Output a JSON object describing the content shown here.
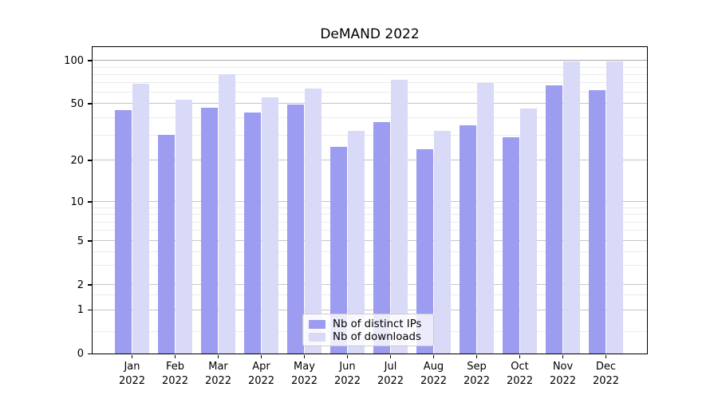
{
  "chart_data": {
    "type": "bar",
    "title": "DeMAND 2022",
    "year_label": "2022",
    "months": [
      "Jan",
      "Feb",
      "Mar",
      "Apr",
      "May",
      "Jun",
      "Jul",
      "Aug",
      "Sep",
      "Oct",
      "Nov",
      "Dec"
    ],
    "series": [
      {
        "name": "Nb of distinct IPs",
        "color": "#9c9cf0",
        "values": [
          45,
          30,
          47,
          43,
          49,
          25,
          37,
          24,
          35,
          29,
          67,
          62
        ]
      },
      {
        "name": "Nb of downloads",
        "color": "#d9d9f8",
        "values": [
          69,
          53,
          80,
          55,
          64,
          32,
          73,
          32,
          70,
          46,
          98,
          98
        ]
      }
    ],
    "yscale": "symlog",
    "ylim": [
      0,
      125
    ],
    "ytick_values": [
      100,
      50,
      20,
      10,
      5,
      2,
      1,
      0
    ],
    "ytick_labels": [
      "100",
      "50",
      "20",
      "10",
      "5",
      "2",
      "1",
      "0"
    ],
    "yminor_values": [
      90,
      80,
      70,
      60,
      40,
      30,
      9,
      8,
      7,
      6,
      4,
      3,
      1.5,
      0.5
    ],
    "grid": "both",
    "legend": {
      "position": "lower center",
      "entries": [
        "Nb of distinct IPs",
        "Nb of downloads"
      ]
    }
  },
  "colors": {
    "grid_major": "#c6c6c6",
    "grid_major_top": "#a9a9a9",
    "grid_minor": "#ebebeb",
    "spine": "#000000",
    "background": "#ffffff"
  }
}
